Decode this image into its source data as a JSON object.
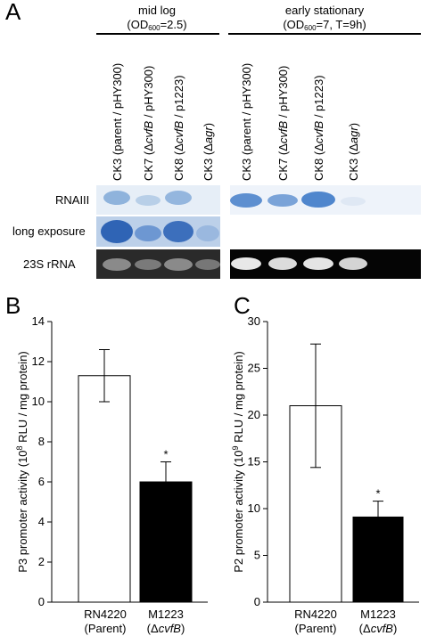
{
  "panel_a": {
    "label": "A",
    "groups": [
      {
        "title": "mid log",
        "subtitle": [
          "(OD",
          "600",
          "=2.5)"
        ],
        "lanes": [
          [
            "CK3 (parent / pHY300)"
          ],
          [
            "CK7 (Δ",
            "cvfB",
            " / pHY300)"
          ],
          [
            "CK8 (Δ",
            "cvfB",
            " / p1223)"
          ],
          [
            "CK3 (Δ",
            "agr",
            ")"
          ]
        ]
      },
      {
        "title": "early stationary",
        "subtitle": [
          "(OD",
          "600",
          "=7, T=9h)"
        ],
        "lanes": [
          [
            "CK3 (parent / pHY300)"
          ],
          [
            "CK7 (Δ",
            "cvfB",
            " / pHY300)"
          ],
          [
            "CK8 (Δ",
            "cvfB",
            " / p1223)"
          ],
          [
            "CK3 (Δ",
            "agr",
            ")"
          ]
        ]
      }
    ],
    "rows": [
      "RNAIII",
      "long exposure",
      "23S rRNA"
    ]
  },
  "chart_data": [
    {
      "type": "bar",
      "label": "B",
      "y_label": [
        "P3 promoter activity (10",
        "8",
        " RLU / mg protein)"
      ],
      "categories": [
        [
          "RN4220",
          "(Parent)"
        ],
        [
          "M1223",
          "(Δ",
          "cvfB",
          ")"
        ]
      ],
      "values": [
        11.3,
        6.0
      ],
      "errors": [
        1.3,
        1.0
      ],
      "colors": [
        "#ffffff",
        "#000000"
      ],
      "annotation": "*",
      "ylim": [
        0,
        14
      ],
      "yticks": [
        0,
        2,
        4,
        6,
        8,
        10,
        12,
        14
      ]
    },
    {
      "type": "bar",
      "label": "C",
      "y_label": [
        "P2 promoter activity (10",
        "9",
        " RLU / mg protein)"
      ],
      "categories": [
        [
          "RN4220",
          "(Parent)"
        ],
        [
          "M1223",
          "(Δ",
          "cvfB",
          ")"
        ]
      ],
      "values": [
        21.0,
        9.1
      ],
      "errors": [
        6.6,
        1.7
      ],
      "colors": [
        "#ffffff",
        "#000000"
      ],
      "annotation": "*",
      "ylim": [
        0,
        30
      ],
      "yticks": [
        0,
        5,
        10,
        15,
        20,
        25,
        30
      ]
    }
  ]
}
